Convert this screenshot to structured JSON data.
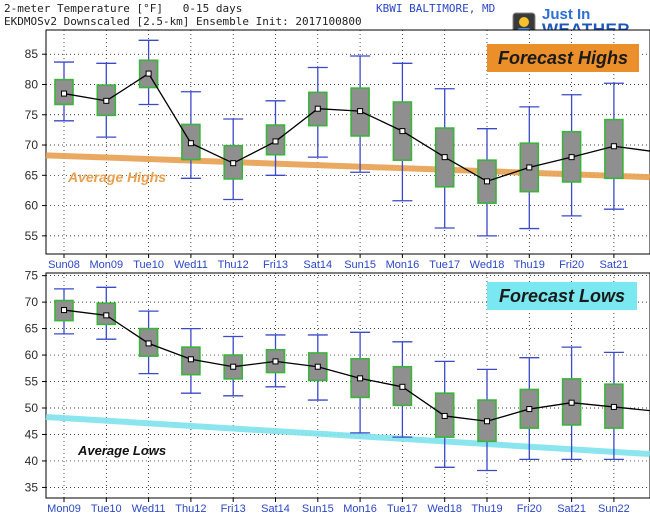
{
  "header": {
    "line1": "2-meter Temperature [°F]   0-15 days",
    "line2": "EKDMOSv2 Downscaled [2.5-km] Ensemble Init: 2017100800",
    "station": "KBWI BALTIMORE, MD"
  },
  "logo": {
    "line1": "Just In",
    "line2": "WEATHER"
  },
  "colors": {
    "box_fill": "#8f8f8f",
    "box_border": "#3bb43b",
    "whisker": "#3c49c8",
    "mean_line": "#000000",
    "avg_highs_line": "#e8a050",
    "avg_lows_line": "#7fe3ee",
    "highs_tag_bg": "#eb8f2a",
    "lows_tag_bg": "#7ae8f0",
    "tick_label": "#2b46c6"
  },
  "chart_data": [
    {
      "type": "box",
      "title": "Forecast Highs",
      "reference_label": "Average Highs",
      "reference_line": [
        68.3,
        64.7
      ],
      "ylim": [
        52,
        89
      ],
      "yticks": [
        55,
        60,
        65,
        70,
        75,
        80,
        85
      ],
      "categories": [
        "Sun08",
        "Mon09",
        "Tue10",
        "Wed11",
        "Thu12",
        "Fri13",
        "Sat14",
        "Sun15",
        "Mon16",
        "Tue17",
        "Wed18",
        "Thu19",
        "Fri20",
        "Sat21"
      ],
      "series": [
        {
          "mean": [
            78.5,
            77.3,
            81.8,
            70.3,
            67.0,
            70.6,
            76.0,
            75.6,
            72.3,
            68.0,
            64.0,
            66.3,
            68.0,
            69.8
          ],
          "box_low": [
            76.7,
            74.9,
            79.5,
            67.6,
            64.4,
            68.4,
            73.2,
            71.5,
            67.5,
            63.1,
            60.4,
            62.3,
            63.9,
            64.5
          ],
          "box_high": [
            80.8,
            79.9,
            84.0,
            73.4,
            69.9,
            73.3,
            78.7,
            79.4,
            77.1,
            72.8,
            67.5,
            70.3,
            72.2,
            74.2
          ],
          "whisker_low": [
            74.0,
            71.3,
            76.7,
            64.5,
            61.0,
            65.0,
            68.0,
            65.5,
            60.8,
            56.3,
            55.0,
            56.2,
            58.3,
            59.4
          ],
          "whisker_high": [
            83.7,
            83.5,
            87.3,
            78.8,
            74.3,
            77.3,
            82.8,
            84.7,
            83.5,
            79.3,
            72.7,
            76.3,
            78.3,
            80.2
          ]
        }
      ],
      "trend_end": 69.0
    },
    {
      "type": "box",
      "title": "Forecast Lows",
      "reference_label": "Average Lows",
      "reference_line": [
        48.3,
        41.3
      ],
      "ylim": [
        33,
        75.5
      ],
      "yticks": [
        35,
        40,
        45,
        50,
        55,
        60,
        65,
        70,
        75
      ],
      "categories": [
        "Mon09",
        "Tue10",
        "Wed11",
        "Thu12",
        "Fri13",
        "Sat14",
        "Sun15",
        "Mon16",
        "Tue17",
        "Wed18",
        "Thu19",
        "Fri20",
        "Sat21",
        "Sun22"
      ],
      "series": [
        {
          "mean": [
            68.5,
            67.5,
            62.2,
            59.2,
            57.8,
            58.8,
            57.8,
            55.6,
            54.0,
            48.5,
            47.5,
            49.8,
            51.0,
            50.2
          ],
          "box_low": [
            66.5,
            65.8,
            59.8,
            56.3,
            55.5,
            56.7,
            55.2,
            52.0,
            50.5,
            44.5,
            43.7,
            46.2,
            46.8,
            46.2
          ],
          "box_high": [
            70.3,
            69.8,
            65.0,
            61.5,
            60.0,
            61.0,
            60.4,
            59.3,
            57.8,
            52.8,
            51.5,
            53.5,
            55.5,
            54.5
          ],
          "whisker_low": [
            64.0,
            63.0,
            56.5,
            52.8,
            52.3,
            54.0,
            51.5,
            45.3,
            44.5,
            38.8,
            38.2,
            40.3,
            40.3,
            40.3
          ],
          "whisker_high": [
            72.5,
            72.8,
            68.3,
            65.0,
            63.5,
            63.8,
            63.8,
            64.3,
            62.5,
            58.8,
            57.3,
            59.5,
            61.5,
            60.5
          ]
        }
      ],
      "trend_end": 49.5
    }
  ]
}
